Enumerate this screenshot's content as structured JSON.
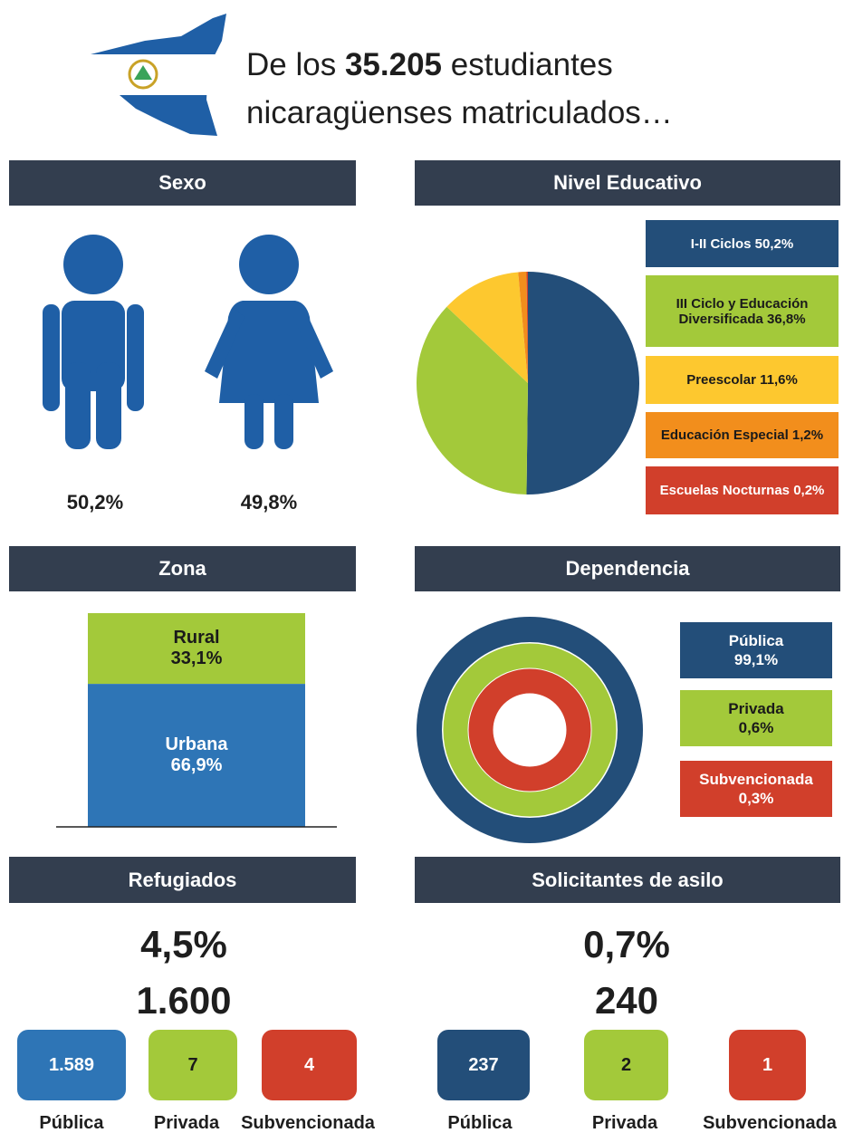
{
  "header": {
    "line1_start": "De los",
    "line1_number": "35.205",
    "line1_end": "estudiantes",
    "line2": "nicaragüenses matriculados…"
  },
  "chart_data": [
    {
      "type": "pictogram",
      "title": "Sexo",
      "values": [
        50.2,
        49.8
      ],
      "value_labels": [
        "50,2%",
        "49,8%"
      ],
      "color": "#1f5fa6"
    },
    {
      "type": "pie",
      "title": "Nivel Educativo",
      "categories": [
        "I-II Ciclos",
        "III Ciclo y Educación Diversificada",
        "Preescolar",
        "Educación Especial",
        "Escuelas Nocturnas"
      ],
      "values": [
        50.2,
        36.8,
        11.6,
        1.2,
        0.2
      ],
      "value_labels": [
        "50,2%",
        "36,8%",
        "11,6%",
        "1,2%",
        "0,2%"
      ],
      "colors": [
        "#234e79",
        "#a3c93a",
        "#fdc82f",
        "#f28e1c",
        "#d13f2b"
      ]
    },
    {
      "type": "stacked_bar",
      "title": "Zona",
      "categories": [
        "Rural",
        "Urbana"
      ],
      "values": [
        33.1,
        66.9
      ],
      "value_labels": [
        "33,1%",
        "66,9%"
      ],
      "colors": [
        "#a3c93a",
        "#2e75b6"
      ]
    },
    {
      "type": "rings",
      "title": "Dependencia",
      "categories": [
        "Pública",
        "Privada",
        "Subvencionada"
      ],
      "values": [
        99.1,
        0.6,
        0.3
      ],
      "value_labels": [
        "99,1%",
        "0,6%",
        "0,3%"
      ],
      "colors": [
        "#234e79",
        "#a3c93a",
        "#d13f2b"
      ]
    },
    {
      "type": "counts",
      "title": "Refugiados",
      "share": 4.5,
      "share_label": "4,5%",
      "total": 1600,
      "total_label": "1.600",
      "categories": [
        "Pública",
        "Privada",
        "Subvencionada"
      ],
      "values": [
        1589,
        7,
        4
      ],
      "value_labels": [
        "1.589",
        "7",
        "4"
      ],
      "colors": [
        "#2e75b6",
        "#a3c93a",
        "#d13f2b"
      ]
    },
    {
      "type": "counts",
      "title": "Solicitantes de asilo",
      "share": 0.7,
      "share_label": "0,7%",
      "total": 240,
      "categories": [
        "Pública",
        "Privada",
        "Subvencionada"
      ],
      "values": [
        237,
        2,
        1
      ],
      "colors": [
        "#234e79",
        "#a3c93a",
        "#d13f2b"
      ]
    }
  ]
}
